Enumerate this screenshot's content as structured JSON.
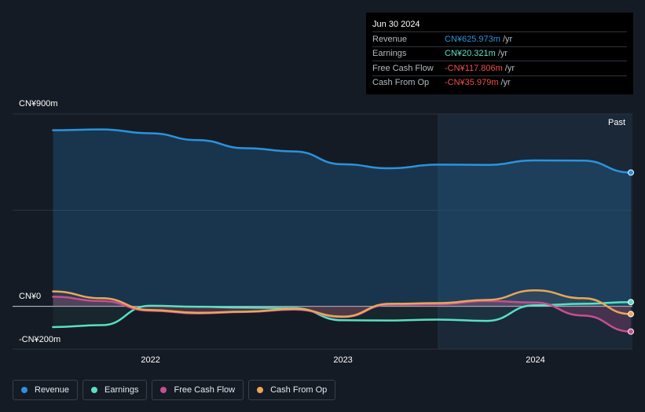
{
  "tooltip": {
    "date": "Jun 30 2024",
    "rows": [
      {
        "label": "Revenue",
        "value": "CN¥625.973m",
        "unit": "/yr",
        "color": "#2a93de"
      },
      {
        "label": "Earnings",
        "value": "CN¥20.321m",
        "unit": "/yr",
        "color": "#59e0c5"
      },
      {
        "label": "Free Cash Flow",
        "value": "-CN¥117.806m",
        "unit": "/yr",
        "color": "#f14e4e"
      },
      {
        "label": "Cash From Op",
        "value": "-CN¥35.979m",
        "unit": "/yr",
        "color": "#f14e4e"
      }
    ]
  },
  "past_label": "Past",
  "legend": [
    {
      "label": "Revenue",
      "color": "#2a93de"
    },
    {
      "label": "Earnings",
      "color": "#59e0c5"
    },
    {
      "label": "Free Cash Flow",
      "color": "#c84f8f"
    },
    {
      "label": "Cash From Op",
      "color": "#e9a75a"
    }
  ],
  "chart_data": {
    "type": "line",
    "unit": "CN¥ m",
    "ylim": [
      -200,
      900
    ],
    "xlim": [
      "2021-06-01",
      "2024-06-30"
    ],
    "y_tick_labels": [
      {
        "value": 900,
        "label": "CN¥900m"
      },
      {
        "value": 0,
        "label": "CN¥0"
      },
      {
        "value": -200,
        "label": "-CN¥200m"
      }
    ],
    "x_tick_labels": [
      {
        "value": "2022-01-01",
        "label": "2022"
      },
      {
        "value": "2023-01-01",
        "label": "2023"
      },
      {
        "value": "2024-01-01",
        "label": "2024"
      }
    ],
    "forecast_start": "2023-07-01",
    "series": [
      {
        "name": "Revenue",
        "color": "#2a93de",
        "x": [
          "2021-06-30",
          "2021-09-30",
          "2021-12-31",
          "2022-03-31",
          "2022-06-30",
          "2022-09-30",
          "2022-12-31",
          "2023-03-31",
          "2023-06-30",
          "2023-09-30",
          "2023-12-31",
          "2024-03-31",
          "2024-06-30"
        ],
        "values": [
          824,
          828,
          810,
          778,
          740,
          725,
          665,
          646,
          663,
          662,
          683,
          682,
          626
        ]
      },
      {
        "name": "Earnings",
        "color": "#59e0c5",
        "x": [
          "2021-06-30",
          "2021-09-30",
          "2021-12-31",
          "2022-03-31",
          "2022-06-30",
          "2022-09-30",
          "2022-12-31",
          "2023-03-31",
          "2023-06-30",
          "2023-09-30",
          "2023-12-31",
          "2024-03-31",
          "2024-06-30"
        ],
        "values": [
          -97,
          -88,
          3,
          -2,
          -6,
          -8,
          -65,
          -66,
          -62,
          -68,
          5,
          12,
          20
        ]
      },
      {
        "name": "Free Cash Flow",
        "color": "#c84f8f",
        "x": [
          "2021-06-30",
          "2021-09-30",
          "2021-12-31",
          "2022-03-31",
          "2022-06-30",
          "2022-09-30",
          "2022-12-31",
          "2023-03-31",
          "2023-06-30",
          "2023-09-30",
          "2023-12-31",
          "2024-03-31",
          "2024-06-30"
        ],
        "values": [
          45,
          25,
          -20,
          -33,
          -26,
          -15,
          -50,
          8,
          10,
          25,
          18,
          -43,
          -118
        ]
      },
      {
        "name": "Cash From Op",
        "color": "#e9a75a",
        "x": [
          "2021-06-30",
          "2021-09-30",
          "2021-12-31",
          "2022-03-31",
          "2022-06-30",
          "2022-09-30",
          "2022-12-31",
          "2023-03-31",
          "2023-06-30",
          "2023-09-30",
          "2023-12-31",
          "2024-03-31",
          "2024-06-30"
        ],
        "values": [
          70,
          38,
          -17,
          -30,
          -25,
          -12,
          -48,
          12,
          15,
          30,
          75,
          38,
          -36
        ]
      }
    ]
  }
}
